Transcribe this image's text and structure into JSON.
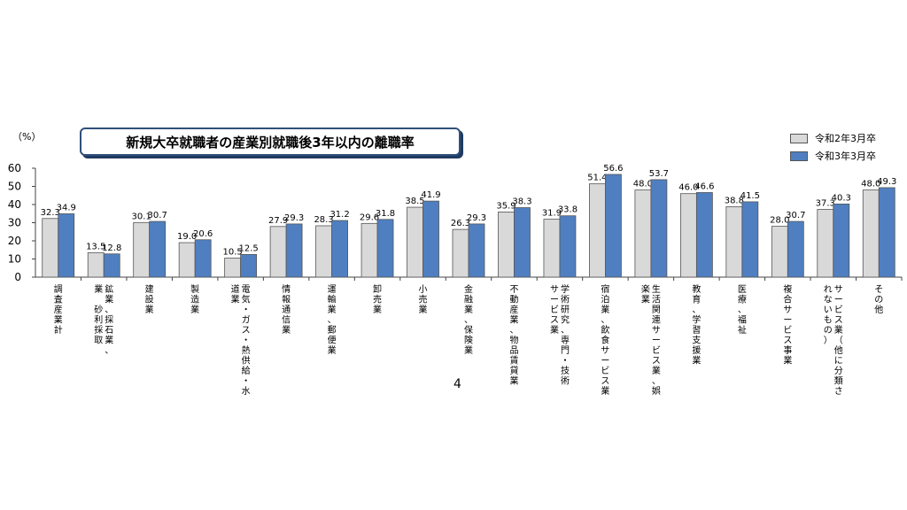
{
  "chart_data": {
    "type": "bar",
    "title": "新規大卒就職者の産業別就職後3年以内の離職率",
    "unit": "（%）",
    "ylim": [
      0,
      60
    ],
    "yticks": [
      "0",
      "10",
      "20",
      "30",
      "40",
      "50",
      "60"
    ],
    "legend_position": "top-right",
    "categories": [
      "調査産業計",
      "鉱業、採石業、砂利採取業",
      "建設業",
      "製造業",
      "電気・ガス・熱供給・水道業",
      "情報通信業",
      "運輸業、郵便業",
      "卸売業",
      "小売業",
      "金融業、保険業",
      "不動産業、物品賃貸業",
      "学術研究、専門・技術サービス業",
      "宿泊業、飲食サービス業",
      "生活関連サービス業、娯楽業",
      "教育、学習支援業",
      "医療、福祉",
      "複合サービス事業",
      "サービス業（他に分類されないもの）",
      "その他"
    ],
    "category_label_columns": [
      [
        "調査産業計"
      ],
      [
        "鉱業、採石業、",
        "業　砂利採取"
      ],
      [
        "建設業"
      ],
      [
        "製造業"
      ],
      [
        "電気・ガス・熱供給・水",
        "道業"
      ],
      [
        "情報通信業"
      ],
      [
        "運輸業、郵便業"
      ],
      [
        "卸売業"
      ],
      [
        "小売業"
      ],
      [
        "金融業、保険業"
      ],
      [
        "不動産業、物品賃貸業"
      ],
      [
        "学術研究、専門・技術",
        "サービス業"
      ],
      [
        "宿泊業、飲食サービス業"
      ],
      [
        "生活関連サービス業、娯",
        "楽業"
      ],
      [
        "教育、学習支援業"
      ],
      [
        "医療、福祉"
      ],
      [
        "複合サービス事業"
      ],
      [
        "サービス業（他に分類さ",
        "れないもの）"
      ],
      [
        "その他"
      ]
    ],
    "series": [
      {
        "name": "令和2年3月卒",
        "color": "#d9d9d9",
        "values": [
          32.3,
          13.5,
          30.1,
          19.0,
          10.5,
          27.9,
          28.3,
          29.6,
          38.5,
          26.3,
          35.9,
          31.9,
          51.4,
          48.0,
          46.0,
          38.8,
          28.0,
          37.3,
          48.0
        ],
        "labels": [
          "32.3",
          "13.5",
          "30.1",
          "19.0",
          "10.5",
          "27.9",
          "28.3",
          "29.6",
          "38.5",
          "26.3",
          "35.9",
          "31.9",
          "51.4",
          "48.0",
          "46.0",
          "38.8",
          "28.0",
          "37.3",
          "48.0"
        ]
      },
      {
        "name": "令和3年3月卒",
        "color": "#4f7fc0",
        "values": [
          34.9,
          12.8,
          30.7,
          20.6,
          12.5,
          29.3,
          31.2,
          31.8,
          41.9,
          29.3,
          38.3,
          33.8,
          56.6,
          53.7,
          46.6,
          41.5,
          30.7,
          40.3,
          49.3
        ],
        "labels": [
          "34.9",
          "12.8",
          "30.7",
          "20.6",
          "12.5",
          "29.3",
          "31.2",
          "31.8",
          "41.9",
          "29.3",
          "38.3",
          "33.8",
          "56.6",
          "53.7",
          "46.6",
          "41.5",
          "30.7",
          "40.3",
          "49.3"
        ]
      }
    ]
  },
  "page_number": "4"
}
